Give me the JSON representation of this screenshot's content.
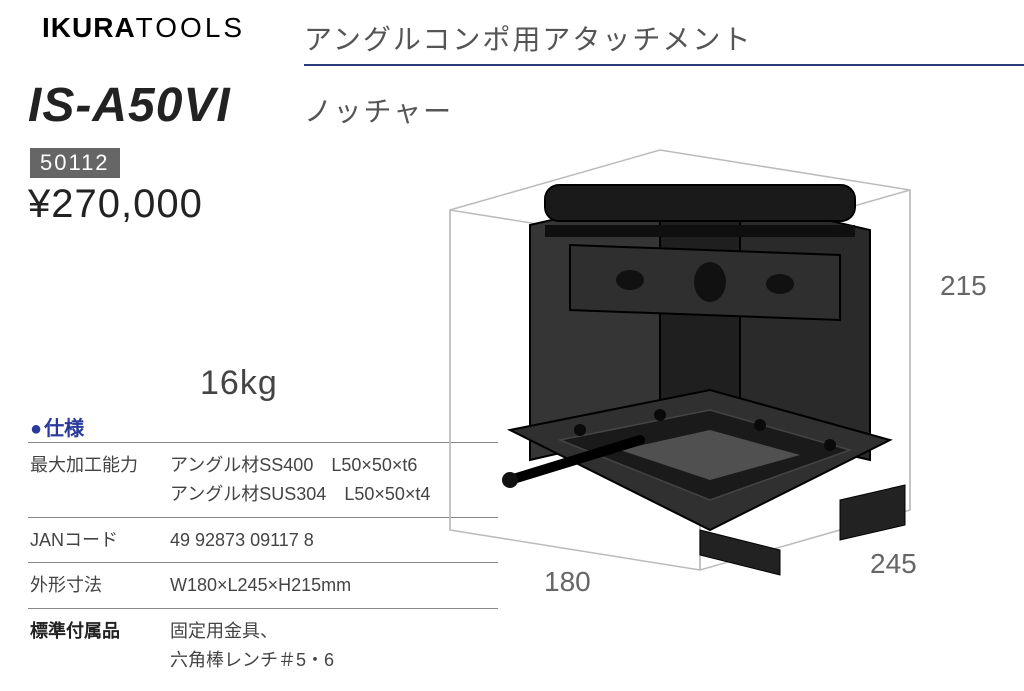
{
  "brand": {
    "part1": "IKURA",
    "part2": "TOOLS"
  },
  "category": "アングルコンポ用アタッチメント",
  "model": "IS-A50VI",
  "subtype": "ノッチャー",
  "code": "50112",
  "price": "¥270,000",
  "weight": "16kg",
  "spec_header": "仕様",
  "specs": [
    {
      "label": "最大加工能力",
      "value": "アングル材SS400　L50×50×t6\nアングル材SUS304　L50×50×t4",
      "bold": false
    },
    {
      "label": "JANコード",
      "value": "49 92873 09117 8",
      "bold": false
    },
    {
      "label": "外形寸法",
      "value": "W180×L245×H215mm",
      "bold": false
    },
    {
      "label": "標準付属品",
      "value": "固定用金具、\n六角棒レンチ＃5・6",
      "bold": true
    }
  ],
  "dimensions": {
    "height": "215",
    "width": "180",
    "length": "245"
  },
  "product_svg": {
    "body_fill": "#2a2a2a",
    "body_stroke": "#000000",
    "highlight": "#555555",
    "box_stroke": "#999999"
  }
}
